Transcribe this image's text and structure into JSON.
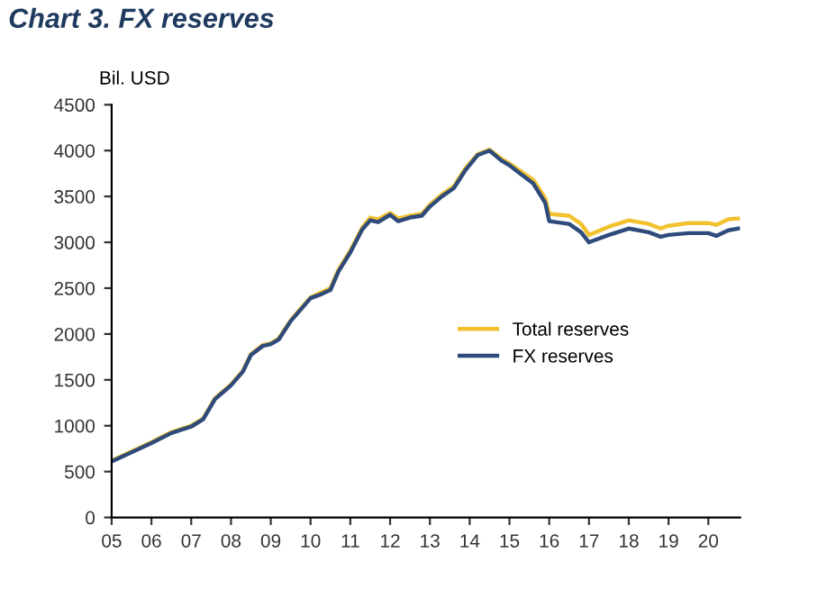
{
  "chart_data": {
    "type": "line",
    "title": "Chart 3. FX reserves",
    "ylabel": "Bil. USD",
    "x": [
      2005.0,
      2005.5,
      2006.0,
      2006.5,
      2007.0,
      2007.3,
      2007.6,
      2008.0,
      2008.3,
      2008.5,
      2008.8,
      2009.0,
      2009.2,
      2009.5,
      2009.8,
      2010.0,
      2010.3,
      2010.5,
      2010.7,
      2011.0,
      2011.3,
      2011.5,
      2011.7,
      2012.0,
      2012.2,
      2012.5,
      2012.8,
      2013.0,
      2013.3,
      2013.6,
      2013.9,
      2014.2,
      2014.5,
      2014.8,
      2015.0,
      2015.3,
      2015.6,
      2015.9,
      2016.0,
      2016.5,
      2016.8,
      2017.0,
      2017.5,
      2018.0,
      2018.5,
      2018.8,
      2019.0,
      2019.5,
      2020.0,
      2020.2,
      2020.5,
      2020.75
    ],
    "series": [
      {
        "name": "Total reserves",
        "color": "#f2c12e",
        "values": [
          620,
          720,
          820,
          930,
          1000,
          1080,
          1300,
          1450,
          1600,
          1780,
          1880,
          1900,
          1950,
          2150,
          2300,
          2400,
          2460,
          2500,
          2700,
          2910,
          3160,
          3270,
          3250,
          3320,
          3260,
          3290,
          3310,
          3410,
          3520,
          3610,
          3810,
          3960,
          4010,
          3910,
          3860,
          3770,
          3680,
          3480,
          3310,
          3290,
          3200,
          3080,
          3170,
          3240,
          3200,
          3150,
          3180,
          3210,
          3210,
          3190,
          3250,
          3260
        ]
      },
      {
        "name": "FX reserves",
        "color": "#2f4b7c",
        "values": [
          610,
          710,
          810,
          920,
          990,
          1070,
          1290,
          1440,
          1590,
          1770,
          1870,
          1890,
          1940,
          2140,
          2290,
          2390,
          2440,
          2480,
          2680,
          2890,
          3140,
          3240,
          3220,
          3300,
          3230,
          3270,
          3290,
          3390,
          3500,
          3590,
          3790,
          3950,
          4000,
          3890,
          3840,
          3740,
          3640,
          3430,
          3230,
          3200,
          3110,
          3000,
          3080,
          3150,
          3110,
          3060,
          3080,
          3100,
          3100,
          3070,
          3130,
          3150
        ]
      }
    ],
    "xlim": [
      2005.0,
      2020.8
    ],
    "xticks": [
      {
        "value": 2005,
        "label": "05"
      },
      {
        "value": 2006,
        "label": "06"
      },
      {
        "value": 2007,
        "label": "07"
      },
      {
        "value": 2008,
        "label": "08"
      },
      {
        "value": 2009,
        "label": "09"
      },
      {
        "value": 2010,
        "label": "10"
      },
      {
        "value": 2011,
        "label": "11"
      },
      {
        "value": 2012,
        "label": "12"
      },
      {
        "value": 2013,
        "label": "13"
      },
      {
        "value": 2014,
        "label": "14"
      },
      {
        "value": 2015,
        "label": "15"
      },
      {
        "value": 2016,
        "label": "16"
      },
      {
        "value": 2017,
        "label": "17"
      },
      {
        "value": 2018,
        "label": "18"
      },
      {
        "value": 2019,
        "label": "19"
      },
      {
        "value": 2020,
        "label": "20"
      }
    ],
    "ylim": [
      0,
      4500
    ],
    "yticks": [
      0,
      500,
      1000,
      1500,
      2000,
      2500,
      3000,
      3500,
      4000,
      4500
    ],
    "grid": false,
    "legend": "right",
    "marker": "none",
    "line_style": "solid"
  }
}
